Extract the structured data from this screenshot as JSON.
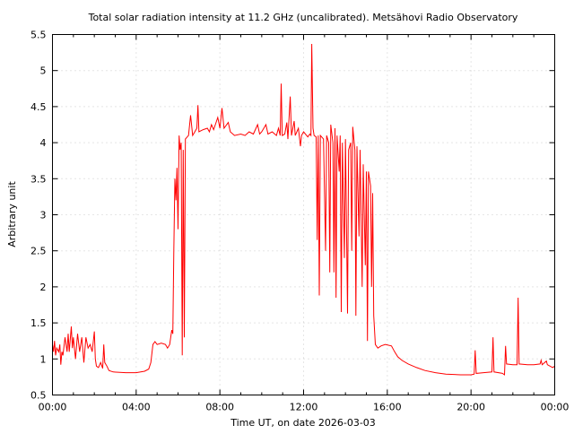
{
  "chart_data": {
    "type": "line",
    "title": "Total solar radiation intensity at 11.2 GHz (uncalibrated). Metsähovi Radio Observatory",
    "xlabel": "Time UT, on date 2026-03-03",
    "ylabel": "Arbitrary unit",
    "xlim": [
      0,
      24
    ],
    "ylim": [
      0.5,
      5.5
    ],
    "xticks": [
      {
        "v": 0,
        "label": "00:00"
      },
      {
        "v": 4,
        "label": "04:00"
      },
      {
        "v": 8,
        "label": "08:00"
      },
      {
        "v": 12,
        "label": "12:00"
      },
      {
        "v": 16,
        "label": "16:00"
      },
      {
        "v": 20,
        "label": "20:00"
      },
      {
        "v": 24,
        "label": "00:00"
      }
    ],
    "yticks": [
      {
        "v": 0.5,
        "label": "0.5"
      },
      {
        "v": 1,
        "label": "1"
      },
      {
        "v": 1.5,
        "label": "1.5"
      },
      {
        "v": 2,
        "label": "2"
      },
      {
        "v": 2.5,
        "label": "2.5"
      },
      {
        "v": 3,
        "label": "3"
      },
      {
        "v": 3.5,
        "label": "3.5"
      },
      {
        "v": 4,
        "label": "4"
      },
      {
        "v": 4.5,
        "label": "4.5"
      },
      {
        "v": 5,
        "label": "5"
      },
      {
        "v": 5.5,
        "label": "5.5"
      }
    ],
    "grid": true,
    "series": [
      {
        "name": "11.2 GHz",
        "color": "#ff0000",
        "points": [
          [
            0,
            1.2
          ],
          [
            0.05,
            1.1
          ],
          [
            0.1,
            1.25
          ],
          [
            0.15,
            1.05
          ],
          [
            0.2,
            1.15
          ],
          [
            0.3,
            1.1
          ],
          [
            0.35,
            1.2
          ],
          [
            0.4,
            0.92
          ],
          [
            0.45,
            1.1
          ],
          [
            0.5,
            1.05
          ],
          [
            0.6,
            1.3
          ],
          [
            0.7,
            1.1
          ],
          [
            0.75,
            1.35
          ],
          [
            0.8,
            1.1
          ],
          [
            0.9,
            1.45
          ],
          [
            0.95,
            1.15
          ],
          [
            1.0,
            1.3
          ],
          [
            1.1,
            1.0
          ],
          [
            1.2,
            1.35
          ],
          [
            1.3,
            1.1
          ],
          [
            1.4,
            1.3
          ],
          [
            1.5,
            0.95
          ],
          [
            1.6,
            1.3
          ],
          [
            1.7,
            1.15
          ],
          [
            1.8,
            1.2
          ],
          [
            1.9,
            1.1
          ],
          [
            2.0,
            1.38
          ],
          [
            2.05,
            1.0
          ],
          [
            2.1,
            0.9
          ],
          [
            2.2,
            0.88
          ],
          [
            2.3,
            0.95
          ],
          [
            2.4,
            0.87
          ],
          [
            2.45,
            1.2
          ],
          [
            2.5,
            0.95
          ],
          [
            2.6,
            0.9
          ],
          [
            2.7,
            0.84
          ],
          [
            2.9,
            0.82
          ],
          [
            3.5,
            0.81
          ],
          [
            4.0,
            0.81
          ],
          [
            4.4,
            0.83
          ],
          [
            4.6,
            0.86
          ],
          [
            4.7,
            0.95
          ],
          [
            4.8,
            1.2
          ],
          [
            4.9,
            1.24
          ],
          [
            5.0,
            1.2
          ],
          [
            5.2,
            1.22
          ],
          [
            5.4,
            1.2
          ],
          [
            5.5,
            1.15
          ],
          [
            5.6,
            1.2
          ],
          [
            5.7,
            1.4
          ],
          [
            5.75,
            1.35
          ],
          [
            5.8,
            2.5
          ],
          [
            5.85,
            3.5
          ],
          [
            5.9,
            3.2
          ],
          [
            5.95,
            3.65
          ],
          [
            6.0,
            2.8
          ],
          [
            6.05,
            4.1
          ],
          [
            6.1,
            3.9
          ],
          [
            6.15,
            4.0
          ],
          [
            6.2,
            1.05
          ],
          [
            6.25,
            3.9
          ],
          [
            6.3,
            1.3
          ],
          [
            6.35,
            4.05
          ],
          [
            6.5,
            4.1
          ],
          [
            6.6,
            4.38
          ],
          [
            6.7,
            4.1
          ],
          [
            6.8,
            4.15
          ],
          [
            6.9,
            4.2
          ],
          [
            6.95,
            4.52
          ],
          [
            7.0,
            4.15
          ],
          [
            7.2,
            4.18
          ],
          [
            7.4,
            4.2
          ],
          [
            7.5,
            4.15
          ],
          [
            7.6,
            4.25
          ],
          [
            7.7,
            4.18
          ],
          [
            7.9,
            4.35
          ],
          [
            8.0,
            4.2
          ],
          [
            8.1,
            4.48
          ],
          [
            8.2,
            4.2
          ],
          [
            8.4,
            4.28
          ],
          [
            8.5,
            4.15
          ],
          [
            8.7,
            4.1
          ],
          [
            9.0,
            4.12
          ],
          [
            9.2,
            4.1
          ],
          [
            9.4,
            4.15
          ],
          [
            9.6,
            4.12
          ],
          [
            9.8,
            4.25
          ],
          [
            9.9,
            4.12
          ],
          [
            10.0,
            4.15
          ],
          [
            10.2,
            4.25
          ],
          [
            10.3,
            4.12
          ],
          [
            10.5,
            4.15
          ],
          [
            10.7,
            4.1
          ],
          [
            10.8,
            4.2
          ],
          [
            10.88,
            4.1
          ],
          [
            10.93,
            4.82
          ],
          [
            10.98,
            4.1
          ],
          [
            11.1,
            4.12
          ],
          [
            11.2,
            4.28
          ],
          [
            11.25,
            4.05
          ],
          [
            11.36,
            4.64
          ],
          [
            11.42,
            4.1
          ],
          [
            11.55,
            4.3
          ],
          [
            11.6,
            4.1
          ],
          [
            11.75,
            4.2
          ],
          [
            11.85,
            3.95
          ],
          [
            11.9,
            4.1
          ],
          [
            12.0,
            4.15
          ],
          [
            12.2,
            4.08
          ],
          [
            12.3,
            4.12
          ],
          [
            12.35,
            4.1
          ],
          [
            12.39,
            5.37
          ],
          [
            12.45,
            4.2
          ],
          [
            12.5,
            4.1
          ],
          [
            12.6,
            4.08
          ],
          [
            12.65,
            2.65
          ],
          [
            12.7,
            4.1
          ],
          [
            12.75,
            1.88
          ],
          [
            12.8,
            4.1
          ],
          [
            12.95,
            4.05
          ],
          [
            13.05,
            2.5
          ],
          [
            13.1,
            4.1
          ],
          [
            13.2,
            4.0
          ],
          [
            13.25,
            2.2
          ],
          [
            13.3,
            4.25
          ],
          [
            13.4,
            4.0
          ],
          [
            13.45,
            2.2
          ],
          [
            13.5,
            4.2
          ],
          [
            13.55,
            1.85
          ],
          [
            13.6,
            4.1
          ],
          [
            13.7,
            3.6
          ],
          [
            13.75,
            4.1
          ],
          [
            13.8,
            1.65
          ],
          [
            13.85,
            4.0
          ],
          [
            13.95,
            2.4
          ],
          [
            14.0,
            4.05
          ],
          [
            14.1,
            1.63
          ],
          [
            14.15,
            3.9
          ],
          [
            14.25,
            4.0
          ],
          [
            14.3,
            2.5
          ],
          [
            14.35,
            4.22
          ],
          [
            14.45,
            3.9
          ],
          [
            14.5,
            1.6
          ],
          [
            14.55,
            3.95
          ],
          [
            14.65,
            2.7
          ],
          [
            14.7,
            3.9
          ],
          [
            14.8,
            2.0
          ],
          [
            14.85,
            3.7
          ],
          [
            14.95,
            2.3
          ],
          [
            15.0,
            3.6
          ],
          [
            15.05,
            1.25
          ],
          [
            15.1,
            3.6
          ],
          [
            15.2,
            3.4
          ],
          [
            15.25,
            2.0
          ],
          [
            15.3,
            3.3
          ],
          [
            15.35,
            1.6
          ],
          [
            15.43,
            1.2
          ],
          [
            15.55,
            1.15
          ],
          [
            15.7,
            1.18
          ],
          [
            15.9,
            1.2
          ],
          [
            16.2,
            1.18
          ],
          [
            16.35,
            1.1
          ],
          [
            16.5,
            1.03
          ],
          [
            16.7,
            0.98
          ],
          [
            17.0,
            0.93
          ],
          [
            17.4,
            0.88
          ],
          [
            17.8,
            0.84
          ],
          [
            18.3,
            0.81
          ],
          [
            18.8,
            0.79
          ],
          [
            19.5,
            0.78
          ],
          [
            20.0,
            0.78
          ],
          [
            20.15,
            0.79
          ],
          [
            20.2,
            1.12
          ],
          [
            20.25,
            0.8
          ],
          [
            20.6,
            0.81
          ],
          [
            21.0,
            0.82
          ],
          [
            21.05,
            1.3
          ],
          [
            21.1,
            0.82
          ],
          [
            21.5,
            0.8
          ],
          [
            21.6,
            0.78
          ],
          [
            21.65,
            1.18
          ],
          [
            21.7,
            0.93
          ],
          [
            22.0,
            0.92
          ],
          [
            22.2,
            0.92
          ],
          [
            22.25,
            1.85
          ],
          [
            22.3,
            0.93
          ],
          [
            22.7,
            0.92
          ],
          [
            23.0,
            0.92
          ],
          [
            23.3,
            0.93
          ],
          [
            23.35,
            0.98
          ],
          [
            23.4,
            0.92
          ],
          [
            23.6,
            0.97
          ],
          [
            23.65,
            0.92
          ],
          [
            23.9,
            0.88
          ],
          [
            24,
            0.9
          ]
        ]
      }
    ]
  }
}
